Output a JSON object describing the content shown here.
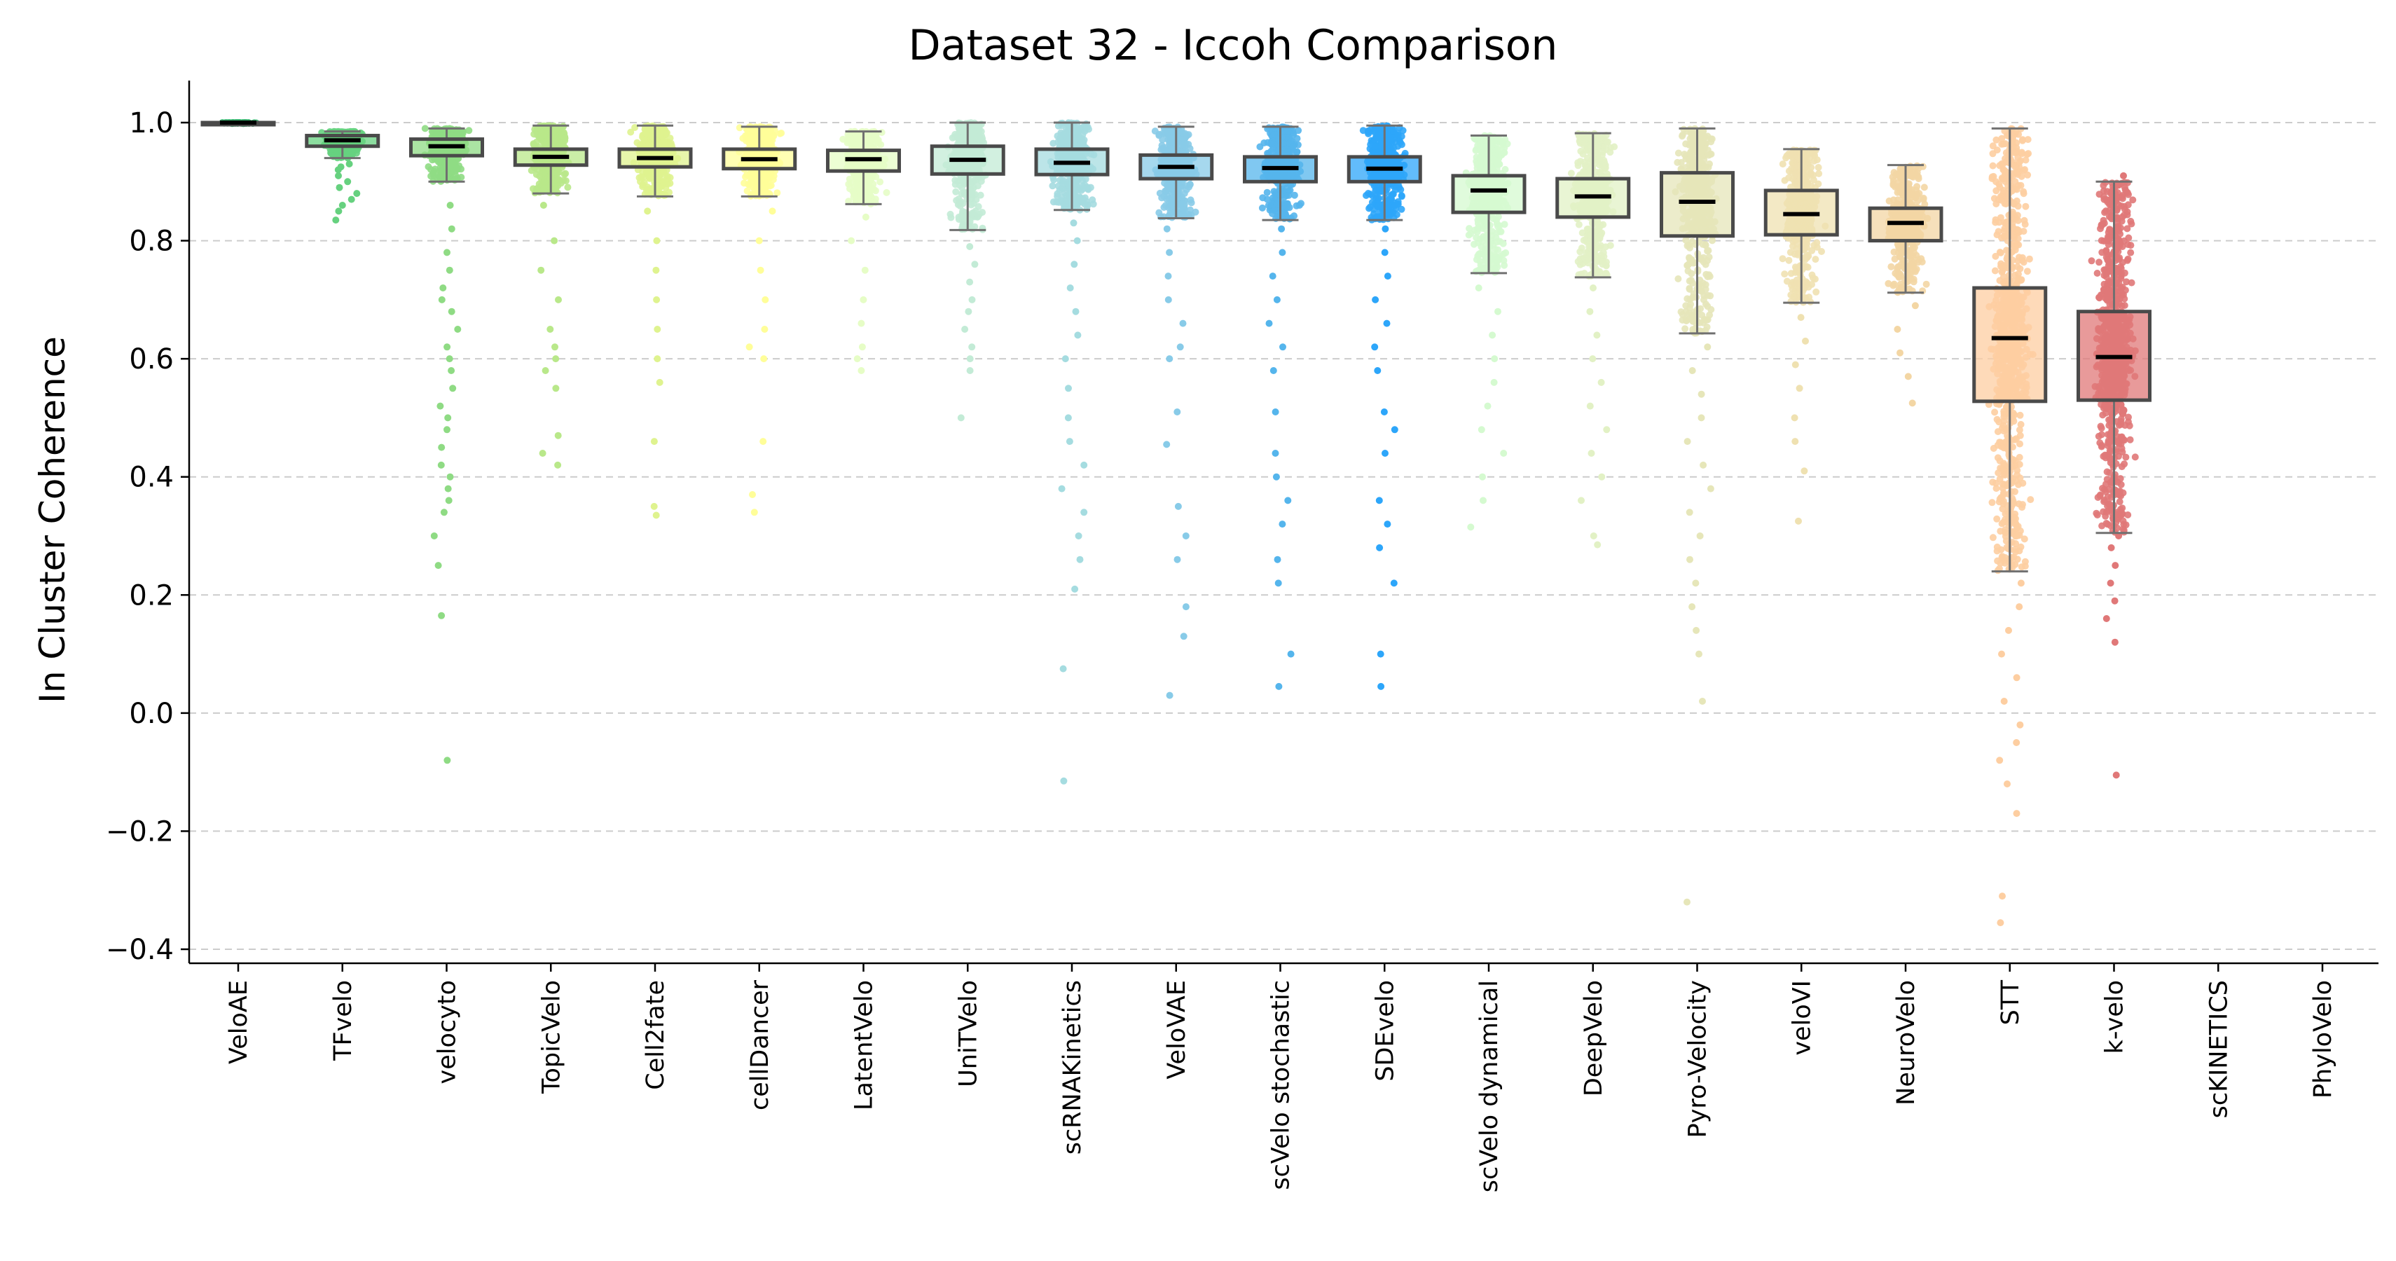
{
  "chart_data": {
    "type": "box",
    "title": "Dataset 32 - Iccoh Comparison",
    "xlabel": "",
    "ylabel": "In Cluster Coherence",
    "ylim": [
      -0.43,
      1.07
    ],
    "yticks": [
      -0.4,
      -0.2,
      0.0,
      0.2,
      0.4,
      0.6,
      0.8,
      1.0
    ],
    "ytick_labels": [
      "−0.4",
      "−0.2",
      "0.0",
      "0.2",
      "0.4",
      "0.6",
      "0.8",
      "1.0"
    ],
    "grid": "horizontal-dashed",
    "categories": [
      "VeloAE",
      "TFvelo",
      "velocyto",
      "TopicVelo",
      "Cell2fate",
      "cellDancer",
      "LatentVelo",
      "UniTVelo",
      "scRNAKinetics",
      "VeloVAE",
      "scVelo stochastic",
      "SDEvelo",
      "scVelo dynamical",
      "DeepVelo",
      "Pyro-Velocity",
      "veloVI",
      "NeuroVelo",
      "STT",
      "k-velo",
      "scKINETICS",
      "PhyloVelo"
    ],
    "colors": [
      "#3cb371",
      "#66d17f",
      "#8fdb84",
      "#b9e88a",
      "#dff38f",
      "#fffe99",
      "#e6fdc6",
      "#c3ebd6",
      "#a5dce0",
      "#88cbe8",
      "#55b5ec",
      "#2da6fa",
      "#d5fad0",
      "#e2f1c5",
      "#e6e6b9",
      "#efe1b1",
      "#f3d6a4",
      "#fdcea1",
      "#e07878",
      "#cccccc",
      "#cccccc"
    ],
    "series": [
      {
        "name": "VeloAE",
        "min": 0.998,
        "q1": 0.999,
        "median": 1.0,
        "q3": 1.0,
        "max": 1.0,
        "n": 60,
        "outliers": []
      },
      {
        "name": "TFvelo",
        "min": 0.94,
        "q1": 0.96,
        "median": 0.97,
        "q3": 0.978,
        "max": 0.985,
        "n": 500,
        "outliers": [
          0.835,
          0.85,
          0.86,
          0.87,
          0.88,
          0.89,
          0.9,
          0.91,
          0.92,
          0.925,
          0.93
        ]
      },
      {
        "name": "velocyto",
        "min": 0.9,
        "q1": 0.944,
        "median": 0.96,
        "q3": 0.972,
        "max": 0.99,
        "n": 500,
        "outliers": [
          0.86,
          0.82,
          0.78,
          0.75,
          0.72,
          0.7,
          0.68,
          0.65,
          0.62,
          0.6,
          0.58,
          0.55,
          0.52,
          0.5,
          0.48,
          0.45,
          0.42,
          0.4,
          0.38,
          0.36,
          0.34,
          0.3,
          0.25,
          0.165,
          -0.08
        ]
      },
      {
        "name": "TopicVelo",
        "min": 0.88,
        "q1": 0.928,
        "median": 0.942,
        "q3": 0.955,
        "max": 0.995,
        "n": 500,
        "outliers": [
          0.86,
          0.8,
          0.75,
          0.7,
          0.65,
          0.62,
          0.6,
          0.58,
          0.55,
          0.47,
          0.44,
          0.42
        ]
      },
      {
        "name": "Cell2fate",
        "min": 0.875,
        "q1": 0.925,
        "median": 0.94,
        "q3": 0.955,
        "max": 0.995,
        "n": 500,
        "outliers": [
          0.85,
          0.8,
          0.75,
          0.7,
          0.65,
          0.6,
          0.56,
          0.46,
          0.35,
          0.335
        ]
      },
      {
        "name": "cellDancer",
        "min": 0.875,
        "q1": 0.922,
        "median": 0.938,
        "q3": 0.955,
        "max": 0.993,
        "n": 500,
        "outliers": [
          0.85,
          0.8,
          0.75,
          0.7,
          0.65,
          0.62,
          0.6,
          0.46,
          0.37,
          0.34
        ]
      },
      {
        "name": "LatentVelo",
        "min": 0.862,
        "q1": 0.918,
        "median": 0.938,
        "q3": 0.953,
        "max": 0.985,
        "n": 500,
        "outliers": [
          0.84,
          0.8,
          0.75,
          0.7,
          0.66,
          0.62,
          0.6,
          0.58
        ]
      },
      {
        "name": "UniTVelo",
        "min": 0.818,
        "q1": 0.913,
        "median": 0.937,
        "q3": 0.96,
        "max": 1.0,
        "n": 500,
        "outliers": [
          0.79,
          0.76,
          0.73,
          0.7,
          0.68,
          0.65,
          0.62,
          0.6,
          0.58,
          0.5
        ]
      },
      {
        "name": "scRNAKinetics",
        "min": 0.852,
        "q1": 0.912,
        "median": 0.932,
        "q3": 0.955,
        "max": 1.0,
        "n": 500,
        "outliers": [
          0.83,
          0.8,
          0.76,
          0.72,
          0.68,
          0.64,
          0.6,
          0.55,
          0.5,
          0.46,
          0.42,
          0.38,
          0.34,
          0.3,
          0.26,
          0.21,
          0.075,
          -0.115
        ]
      },
      {
        "name": "VeloVAE",
        "min": 0.838,
        "q1": 0.905,
        "median": 0.925,
        "q3": 0.945,
        "max": 0.993,
        "n": 500,
        "outliers": [
          0.82,
          0.78,
          0.74,
          0.7,
          0.66,
          0.62,
          0.6,
          0.51,
          0.455,
          0.35,
          0.3,
          0.26,
          0.18,
          0.13,
          0.03
        ]
      },
      {
        "name": "scVelo stochastic",
        "min": 0.835,
        "q1": 0.9,
        "median": 0.923,
        "q3": 0.942,
        "max": 0.993,
        "n": 500,
        "outliers": [
          0.82,
          0.78,
          0.74,
          0.7,
          0.66,
          0.62,
          0.58,
          0.51,
          0.44,
          0.4,
          0.36,
          0.32,
          0.26,
          0.22,
          0.1,
          0.045
        ]
      },
      {
        "name": "SDEvelo",
        "min": 0.835,
        "q1": 0.9,
        "median": 0.922,
        "q3": 0.942,
        "max": 0.995,
        "n": 500,
        "outliers": [
          0.82,
          0.78,
          0.74,
          0.7,
          0.66,
          0.62,
          0.58,
          0.51,
          0.48,
          0.44,
          0.36,
          0.32,
          0.28,
          0.22,
          0.1,
          0.045
        ]
      },
      {
        "name": "scVelo dynamical",
        "min": 0.745,
        "q1": 0.848,
        "median": 0.885,
        "q3": 0.91,
        "max": 0.978,
        "n": 500,
        "outliers": [
          0.72,
          0.68,
          0.64,
          0.6,
          0.56,
          0.52,
          0.48,
          0.44,
          0.4,
          0.36,
          0.315
        ]
      },
      {
        "name": "DeepVelo",
        "min": 0.738,
        "q1": 0.84,
        "median": 0.875,
        "q3": 0.905,
        "max": 0.982,
        "n": 500,
        "outliers": [
          0.72,
          0.68,
          0.64,
          0.6,
          0.56,
          0.52,
          0.48,
          0.44,
          0.4,
          0.36,
          0.3,
          0.285
        ]
      },
      {
        "name": "Pyro-Velocity",
        "min": 0.643,
        "q1": 0.808,
        "median": 0.866,
        "q3": 0.915,
        "max": 0.99,
        "n": 500,
        "outliers": [
          0.62,
          0.58,
          0.54,
          0.5,
          0.46,
          0.42,
          0.38,
          0.34,
          0.3,
          0.26,
          0.22,
          0.18,
          0.14,
          0.1,
          0.02,
          -0.32
        ]
      },
      {
        "name": "veloVI",
        "min": 0.695,
        "q1": 0.81,
        "median": 0.845,
        "q3": 0.885,
        "max": 0.955,
        "n": 500,
        "outliers": [
          0.67,
          0.63,
          0.59,
          0.55,
          0.5,
          0.46,
          0.41,
          0.325
        ]
      },
      {
        "name": "NeuroVelo",
        "min": 0.712,
        "q1": 0.8,
        "median": 0.83,
        "q3": 0.855,
        "max": 0.928,
        "n": 500,
        "outliers": [
          0.69,
          0.65,
          0.61,
          0.57,
          0.525
        ]
      },
      {
        "name": "STT",
        "min": 0.24,
        "q1": 0.528,
        "median": 0.635,
        "q3": 0.72,
        "max": 0.99,
        "n": 900,
        "outliers": [
          0.22,
          0.18,
          0.14,
          0.1,
          0.06,
          0.02,
          -0.02,
          -0.05,
          -0.08,
          -0.12,
          -0.17,
          -0.31,
          -0.355
        ]
      },
      {
        "name": "k-velo",
        "min": 0.305,
        "q1": 0.53,
        "median": 0.603,
        "q3": 0.68,
        "max": 0.9,
        "n": 900,
        "outliers": [
          0.91,
          0.3,
          0.28,
          0.25,
          0.22,
          0.19,
          0.16,
          0.12,
          -0.105
        ]
      },
      {
        "name": "scKINETICS",
        "n": 0
      },
      {
        "name": "PhyloVelo",
        "n": 0
      }
    ]
  }
}
